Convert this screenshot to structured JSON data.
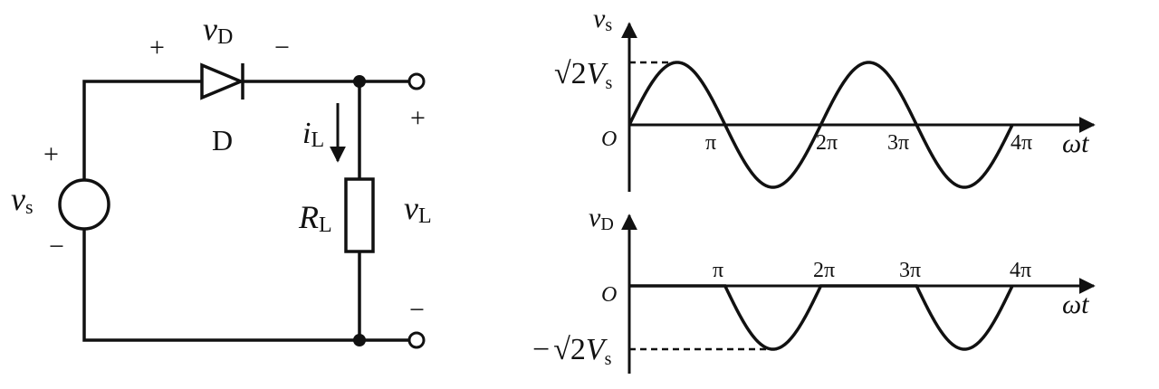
{
  "circuit": {
    "source": {
      "symbol": "v",
      "sub": "s",
      "plus": "+",
      "minus": "−"
    },
    "diode": {
      "voltage_symbol": "v",
      "voltage_sub": "D",
      "plus": "+",
      "minus": "−",
      "name": "D"
    },
    "current": {
      "symbol": "i",
      "sub": "L"
    },
    "resistor": {
      "symbol": "R",
      "sub": "L"
    },
    "output": {
      "symbol": "v",
      "sub": "L",
      "plus": "+",
      "minus": "−"
    }
  },
  "graph_top": {
    "ylabel_symbol": "v",
    "ylabel_sub": "s",
    "peak_label_root": "√2",
    "peak_label_V": "V",
    "peak_label_sub": "s",
    "origin": "O",
    "ticks": [
      "π",
      "2π",
      "3π",
      "4π"
    ],
    "xlabel": "ωt"
  },
  "graph_bottom": {
    "ylabel_symbol": "v",
    "ylabel_sub": "D",
    "trough_label_minus": "−",
    "trough_label_root": "√2",
    "trough_label_V": "V",
    "trough_label_sub": "s",
    "origin": "O",
    "ticks": [
      "π",
      "2π",
      "3π",
      "4π"
    ],
    "xlabel": "ωt"
  },
  "chart_data": [
    {
      "type": "line",
      "ylabel": "vs",
      "xlabel": "ωt",
      "x_ticks": [
        "π",
        "2π",
        "3π",
        "4π"
      ],
      "series": [
        {
          "function": "√2·Vs·sin(ωt)",
          "x_range": [
            0,
            "4π"
          ]
        }
      ],
      "annotations": [
        "√2Vs"
      ]
    },
    {
      "type": "line",
      "ylabel": "vD",
      "xlabel": "ωt",
      "x_ticks": [
        "π",
        "2π",
        "3π",
        "4π"
      ],
      "series": [
        {
          "function": "vD = 0 for 0<ωt<π, 2π<ωt<3π; vD = √2·Vs·sin(ωt) for π<ωt<2π, 3π<ωt<4π",
          "x_range": [
            0,
            "4π"
          ]
        }
      ],
      "annotations": [
        "−√2Vs"
      ]
    }
  ]
}
